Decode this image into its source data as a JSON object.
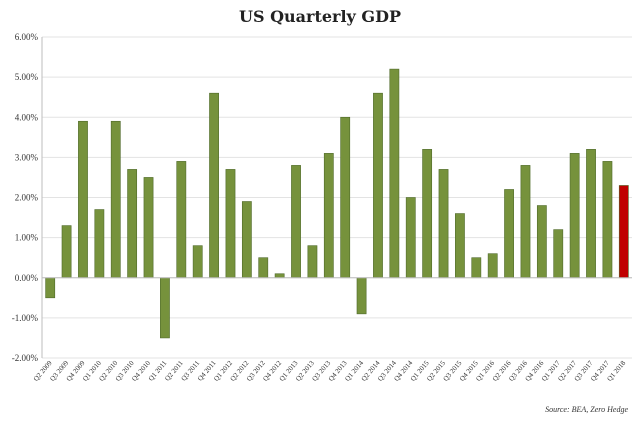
{
  "chart_data": {
    "type": "bar",
    "title": "US Quarterly GDP",
    "source": "Source: BEA, Zero Hedge",
    "ylim": [
      -2.0,
      6.0
    ],
    "ytick_values": [
      -2.0,
      -1.0,
      0.0,
      1.0,
      2.0,
      3.0,
      4.0,
      5.0,
      6.0
    ],
    "ytick_labels": [
      "-2.00%",
      "-1.00%",
      "0.00%",
      "1.00%",
      "2.00%",
      "3.00%",
      "4.00%",
      "5.00%",
      "6.00%"
    ],
    "grid": "horizontal",
    "categories": [
      "Q2 2009",
      "Q3 2009",
      "Q4 2009",
      "Q1 2010",
      "Q2 2010",
      "Q3 2010",
      "Q4 2010",
      "Q1 2011",
      "Q2 2011",
      "Q3 2011",
      "Q4 2011",
      "Q1 2012",
      "Q2 2012",
      "Q3 2012",
      "Q4 2012",
      "Q1 2013",
      "Q2 2013",
      "Q3 2013",
      "Q4 2013",
      "Q1 2014",
      "Q2 2014",
      "Q3 2014",
      "Q4 2014",
      "Q1 2015",
      "Q2 2015",
      "Q3 2015",
      "Q4 2015",
      "Q1 2016",
      "Q2 2016",
      "Q3 2016",
      "Q4 2016",
      "Q1 2017",
      "Q2 2017",
      "Q3 2017",
      "Q4 2017",
      "Q1 2018"
    ],
    "values": [
      -0.5,
      1.3,
      3.9,
      1.7,
      3.9,
      2.7,
      2.5,
      -1.5,
      2.9,
      0.8,
      4.6,
      2.7,
      1.9,
      0.5,
      0.1,
      2.8,
      0.8,
      3.1,
      4.0,
      -0.9,
      4.6,
      5.2,
      2.0,
      3.2,
      2.7,
      1.6,
      0.5,
      0.6,
      2.2,
      2.8,
      1.8,
      1.2,
      3.1,
      3.2,
      2.9,
      2.3
    ],
    "colors": {
      "default": "#76923c",
      "highlight": "#c00000"
    },
    "highlight_index": 35
  }
}
